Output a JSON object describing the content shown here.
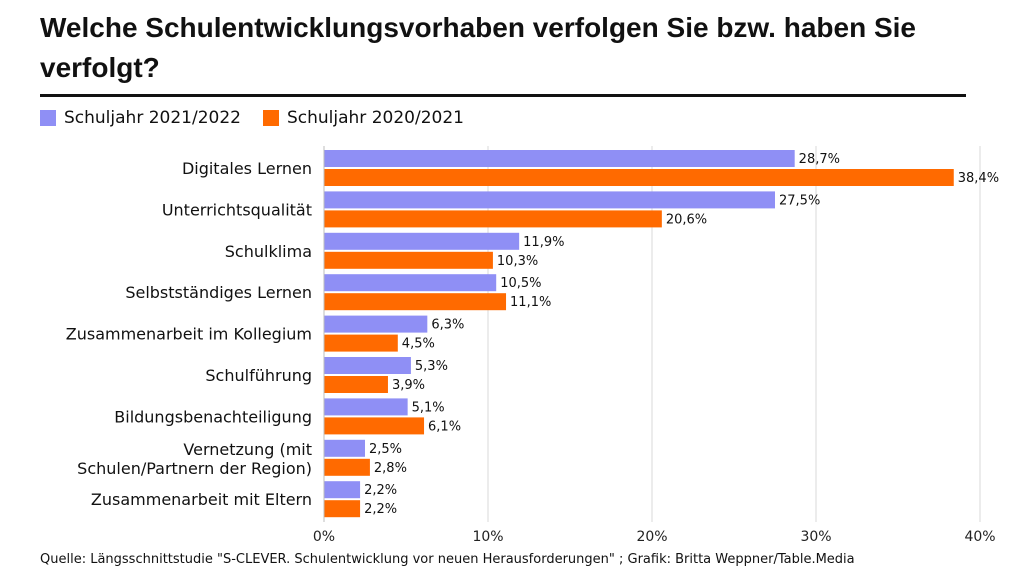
{
  "header": {
    "title": "Welche Schulentwicklungsvorhaben verfolgen Sie bzw. haben Sie verfolgt?"
  },
  "footer": {
    "source": "Quelle: Längsschnittstudie \"S-CLEVER. Schulentwicklung vor neuen Herausforderungen\" ; Grafik: Britta Weppner/Table.Media"
  },
  "chart_data": {
    "type": "bar",
    "orientation": "horizontal",
    "title": "Welche Schulentwicklungsvorhaben verfolgen Sie bzw. haben Sie verfolgt?",
    "categories": [
      "Digitales Lernen",
      "Unterrichtsqualität",
      "Schulklima",
      "Selbstständiges Lernen",
      "Zusammenarbeit im Kollegium",
      "Schulführung",
      "Bildungsbenachteiligung",
      [
        "Vernetzung (mit",
        "Schulen/Partnern der Region)"
      ],
      "Zusammenarbeit mit Eltern"
    ],
    "series": [
      {
        "name": "Schuljahr 2021/2022",
        "color": "#8f8ff5",
        "values": [
          28.7,
          27.5,
          11.9,
          10.5,
          6.3,
          5.3,
          5.1,
          2.5,
          2.2
        ],
        "labels": [
          "28,7%",
          "27,5%",
          "11,9%",
          "10,5%",
          "6,3%",
          "5,3%",
          "5,1%",
          "2,5%",
          "2,2%"
        ]
      },
      {
        "name": "Schuljahr 2020/2021",
        "color": "#ff6a00",
        "values": [
          38.4,
          20.6,
          10.3,
          11.1,
          4.5,
          3.9,
          6.1,
          2.8,
          2.2
        ],
        "labels": [
          "38,4%",
          "20,6%",
          "10,3%",
          "11,1%",
          "4,5%",
          "3,9%",
          "6,1%",
          "2,8%",
          "2,2%"
        ]
      }
    ],
    "xlim": [
      0,
      40
    ],
    "xticks": [
      0,
      10,
      20,
      30,
      40
    ],
    "xtick_labels": [
      "0%",
      "10%",
      "20%",
      "30%",
      "40%"
    ],
    "xlabel": "",
    "ylabel": "",
    "grid": true,
    "legend_position": "top-left"
  }
}
